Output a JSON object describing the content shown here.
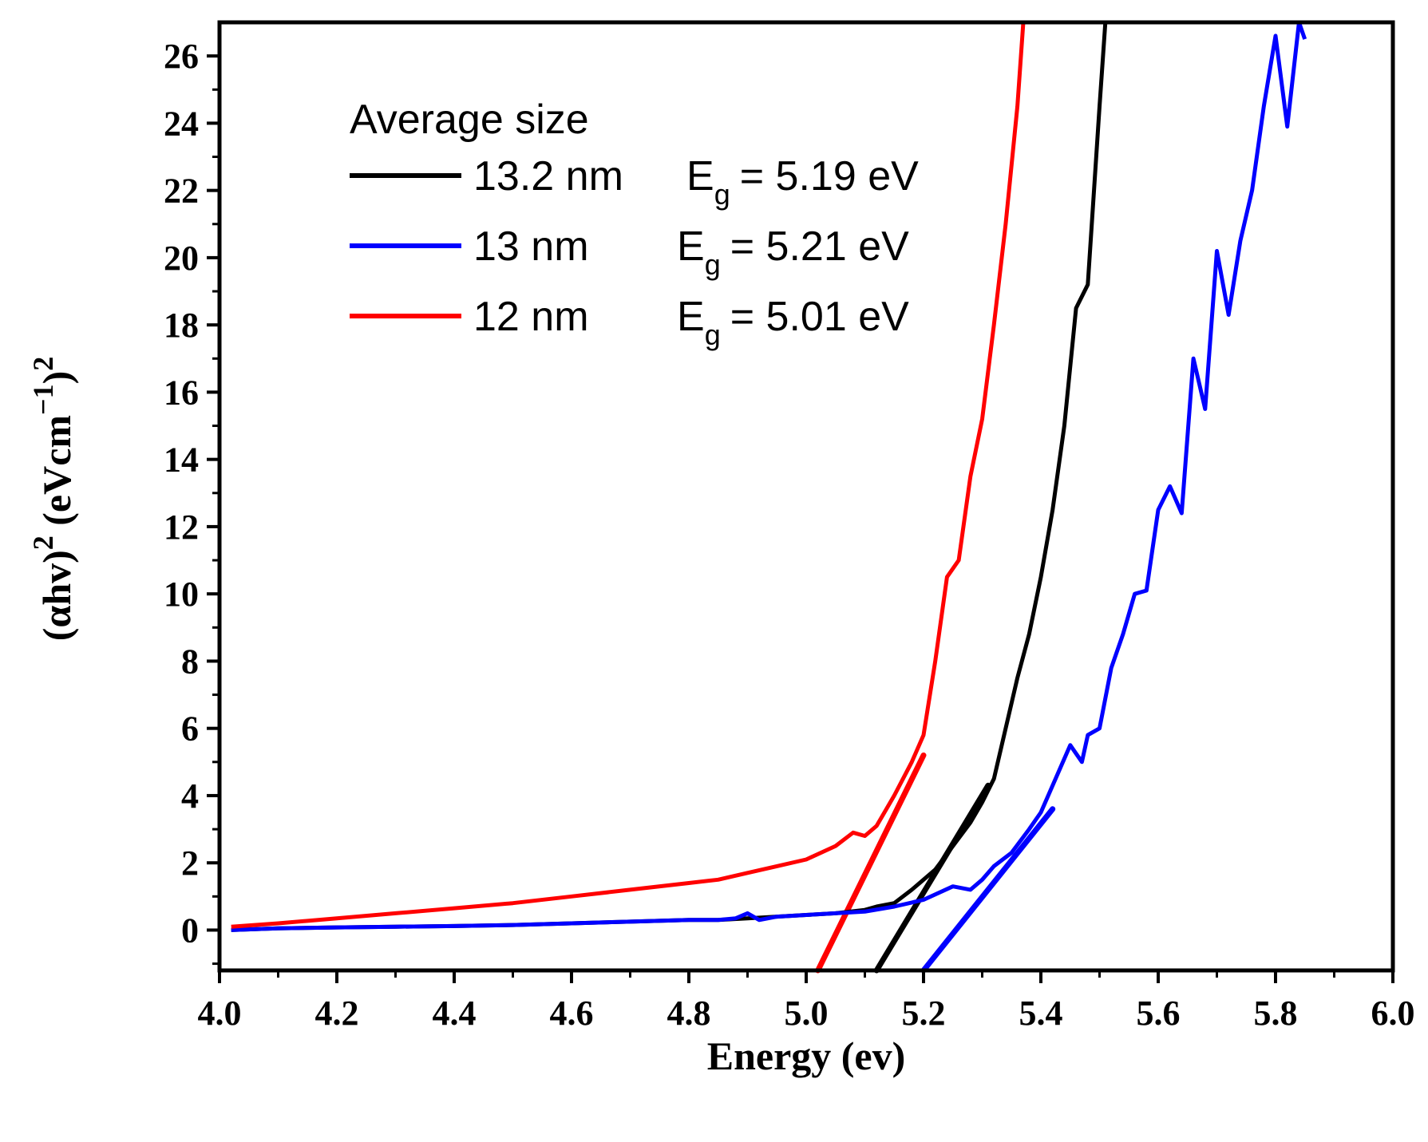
{
  "chart_data": {
    "type": "line",
    "title": "",
    "xlabel": "Energy (ev)",
    "ylabel": {
      "prefix": "(αhv)",
      "sup1": "2",
      "mid": " (eVcm",
      "sup2": "−1",
      "close": ")",
      "sup3": "2"
    },
    "xlim": [
      4.0,
      6.0
    ],
    "ylim": [
      -1.2,
      27.0
    ],
    "xticks": [
      4.0,
      4.2,
      4.4,
      4.6,
      4.8,
      5.0,
      5.2,
      5.4,
      5.6,
      5.8,
      6.0
    ],
    "xtick_labels": [
      "4.0",
      "4.2",
      "4.4",
      "4.6",
      "4.8",
      "5.0",
      "5.2",
      "5.4",
      "5.6",
      "5.8",
      "6.0"
    ],
    "yticks": [
      0,
      2,
      4,
      6,
      8,
      10,
      12,
      14,
      16,
      18,
      20,
      22,
      24,
      26
    ],
    "ytick_labels": [
      "0",
      "2",
      "4",
      "6",
      "8",
      "10",
      "12",
      "14",
      "16",
      "18",
      "20",
      "22",
      "24",
      "26"
    ],
    "legend": {
      "position": "upper-left",
      "title": "Average size",
      "eg_symbol": "E",
      "eg_sub": "g",
      "entries": [
        {
          "size": "13.2 nm",
          "eg_value": "= 5.19 eV",
          "color": "#000000"
        },
        {
          "size": "13 nm",
          "eg_value": "= 5.21 eV",
          "color": "#0000ff"
        },
        {
          "size": "12 nm",
          "eg_value": "= 5.01 eV",
          "color": "#ff0000"
        }
      ]
    },
    "series": [
      {
        "name": "13.2 nm",
        "color": "#000000",
        "x": [
          4.02,
          4.1,
          4.2,
          4.3,
          4.4,
          4.5,
          4.6,
          4.7,
          4.8,
          4.85,
          4.9,
          4.95,
          5.0,
          5.05,
          5.1,
          5.12,
          5.15,
          5.18,
          5.2,
          5.22,
          5.25,
          5.28,
          5.3,
          5.32,
          5.34,
          5.36,
          5.38,
          5.4,
          5.42,
          5.44,
          5.46,
          5.48,
          5.5,
          5.51
        ],
        "y": [
          0.0,
          0.05,
          0.08,
          0.1,
          0.12,
          0.15,
          0.2,
          0.25,
          0.3,
          0.3,
          0.35,
          0.4,
          0.45,
          0.5,
          0.6,
          0.7,
          0.8,
          1.2,
          1.5,
          1.8,
          2.5,
          3.2,
          3.8,
          4.5,
          6.0,
          7.5,
          8.8,
          10.5,
          12.5,
          15.0,
          18.5,
          19.2,
          24.5,
          27.0
        ]
      },
      {
        "name": "13 nm",
        "color": "#0000ff",
        "x": [
          4.02,
          4.1,
          4.2,
          4.3,
          4.4,
          4.5,
          4.6,
          4.7,
          4.8,
          4.85,
          4.88,
          4.9,
          4.92,
          4.95,
          5.0,
          5.05,
          5.1,
          5.15,
          5.2,
          5.25,
          5.28,
          5.3,
          5.32,
          5.35,
          5.38,
          5.4,
          5.45,
          5.47,
          5.48,
          5.5,
          5.52,
          5.54,
          5.56,
          5.58,
          5.6,
          5.62,
          5.64,
          5.66,
          5.68,
          5.7,
          5.72,
          5.74,
          5.76,
          5.78,
          5.8,
          5.82,
          5.84,
          5.85
        ],
        "y": [
          0.0,
          0.05,
          0.08,
          0.1,
          0.12,
          0.15,
          0.2,
          0.25,
          0.3,
          0.3,
          0.35,
          0.5,
          0.3,
          0.4,
          0.45,
          0.5,
          0.55,
          0.7,
          0.9,
          1.3,
          1.2,
          1.5,
          1.9,
          2.3,
          3.0,
          3.5,
          5.5,
          5.0,
          5.8,
          6.0,
          7.8,
          8.8,
          10.0,
          10.1,
          12.5,
          13.2,
          12.4,
          17.0,
          15.5,
          20.2,
          18.3,
          20.5,
          22.0,
          24.5,
          26.6,
          23.9,
          27.0,
          26.5
        ]
      },
      {
        "name": "12 nm",
        "color": "#ff0000",
        "x": [
          4.02,
          4.1,
          4.2,
          4.3,
          4.4,
          4.5,
          4.6,
          4.7,
          4.8,
          4.85,
          4.9,
          4.95,
          5.0,
          5.05,
          5.08,
          5.1,
          5.12,
          5.15,
          5.18,
          5.2,
          5.22,
          5.24,
          5.26,
          5.28,
          5.3,
          5.32,
          5.34,
          5.36,
          5.37
        ],
        "y": [
          0.1,
          0.2,
          0.35,
          0.5,
          0.65,
          0.8,
          1.0,
          1.2,
          1.4,
          1.5,
          1.7,
          1.9,
          2.1,
          2.5,
          2.9,
          2.8,
          3.1,
          4.0,
          5.0,
          5.8,
          8.0,
          10.5,
          11.0,
          13.5,
          15.2,
          18.0,
          21.0,
          24.5,
          27.0
        ]
      }
    ],
    "fit_lines": [
      {
        "series": "13.2 nm",
        "color": "#000000",
        "x": [
          5.12,
          5.31
        ],
        "y": [
          -1.2,
          4.3
        ]
      },
      {
        "series": "13 nm",
        "color": "#0000ff",
        "x": [
          5.2,
          5.42
        ],
        "y": [
          -1.2,
          3.6
        ]
      },
      {
        "series": "12 nm",
        "color": "#ff0000",
        "x": [
          5.02,
          5.2
        ],
        "y": [
          -1.2,
          5.2
        ]
      }
    ]
  }
}
